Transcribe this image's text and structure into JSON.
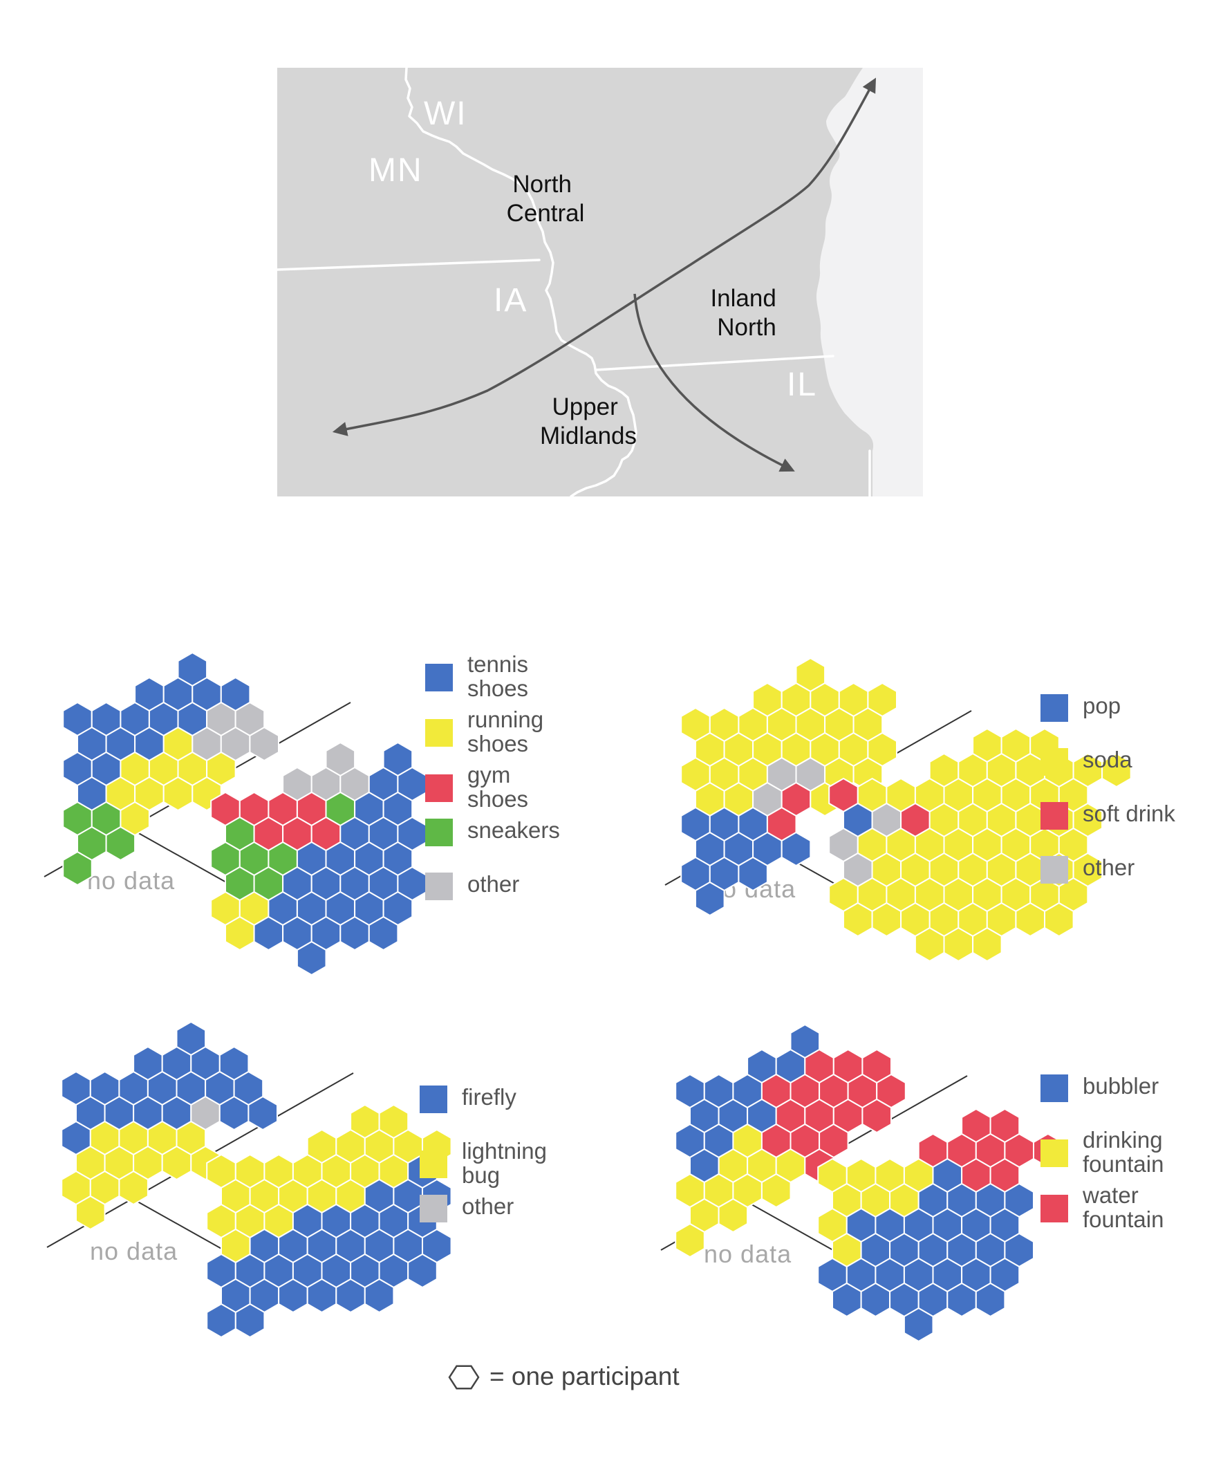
{
  "map": {
    "state_labels": {
      "wi": "WI",
      "mn": "MN",
      "ia": "IA",
      "il": "IL"
    },
    "region_labels": {
      "north_central": [
        "North",
        "Central"
      ],
      "inland_north": [
        "Inland",
        "North"
      ],
      "upper_midlands": [
        "Upper",
        "Midlands"
      ]
    }
  },
  "colors": {
    "blue": "#4472c4",
    "yellow": "#f2ea3a",
    "red": "#e8485a",
    "green": "#5fb846",
    "gray": "#c0c0c4",
    "map_land": "#d6d6d6",
    "map_lake": "#f2f2f3"
  },
  "panels": [
    {
      "id": "shoes",
      "no_data_label": "no data",
      "legend": [
        {
          "color": "blue",
          "lines": [
            "tennis",
            "shoes"
          ]
        },
        {
          "color": "yellow",
          "lines": [
            "running",
            "shoes"
          ]
        },
        {
          "color": "red",
          "lines": [
            "gym",
            "shoes"
          ]
        },
        {
          "color": "green",
          "lines": [
            "sneakers"
          ]
        },
        {
          "color": "gray",
          "lines": [
            "other"
          ]
        }
      ],
      "clusters": {
        "north_central": [
          "....B...",
          "..BBBB..",
          "BBBBBGG.",
          "BBBYGGG.",
          "BBYYYY..",
          "BYYYY...",
          "GGY.....",
          "GG......",
          "G......."
        ],
        "inland_north": [
          "....G.B",
          "..GGGBB",
          "RRRRGBB",
          "GRRRBBB",
          "GGGBBBB",
          "GGBBBBB",
          "YYBBBBB",
          "YBBBBB.",
          "...B..."
        ]
      }
    },
    {
      "id": "pop",
      "no_data_label": "no data",
      "legend": [
        {
          "color": "blue",
          "lines": [
            "pop"
          ]
        },
        {
          "color": "yellow",
          "lines": [
            "soda"
          ]
        },
        {
          "color": "red",
          "lines": [
            "soft drink"
          ]
        },
        {
          "color": "gray",
          "lines": [
            "other"
          ]
        }
      ],
      "clusters": {
        "north_central": [
          "....Y...",
          "..YYYYY.",
          "YYYYYYY.",
          "YYYYYYY.",
          "YYYGGYY.",
          "YYGRYY..",
          "BBBR....",
          "BBBB....",
          "BBB.....",
          "B......."
        ],
        "inland_north": [
          ".....YYY.",
          "...YYYYYYY",
          "RYYYYYYYY",
          "BGRYYYYYY",
          "GYYYYYYYY",
          "GYYYYYYYY",
          "YYYYYYYYY",
          "YYYYYYYY.",
          "...YYY..."
        ]
      }
    },
    {
      "id": "firefly",
      "no_data_label": "no data",
      "legend": [
        {
          "color": "blue",
          "lines": [
            "firefly"
          ]
        },
        {
          "color": "yellow",
          "lines": [
            "lightning",
            "bug"
          ]
        },
        {
          "color": "gray",
          "lines": [
            "other"
          ]
        }
      ],
      "clusters": {
        "north_central": [
          "....B...",
          "..BBBB..",
          "BBBBBBB.",
          "BBBBGBB.",
          "BYYYY...",
          "YYYYY...",
          "YYY.....",
          "Y......."
        ],
        "inland_north": [
          ".....YY.",
          "...YYYYY",
          "YYYYYYYB",
          "YYYYYBBB",
          "YYYBBBBB",
          "YBBBBBBB",
          "BBBBBBBB",
          "BBBBBB..",
          "BB......"
        ]
      }
    },
    {
      "id": "fountain",
      "no_data_label": "no data",
      "legend": [
        {
          "color": "blue",
          "lines": [
            "bubbler"
          ]
        },
        {
          "color": "yellow",
          "lines": [
            "drinking",
            "fountain"
          ]
        },
        {
          "color": "red",
          "lines": [
            "water",
            "fountain"
          ]
        }
      ],
      "clusters": {
        "north_central": [
          "....B...",
          "..BBRRR.",
          "BBBRRRRR",
          "BBBRRRR.",
          "BBYRRR..",
          "BYYYR...",
          "YYYY....",
          "YY......",
          "Y......."
        ],
        "inland_north": [
          ".....RR",
          "...RRRRR",
          "YYYYBRR",
          "YYYBBBB",
          "YBBBBBB",
          "YBBBBBB",
          "BBBBBBB",
          "BBBBBB.",
          "...B..."
        ]
      }
    }
  ],
  "footer": {
    "label": "= one participant"
  }
}
